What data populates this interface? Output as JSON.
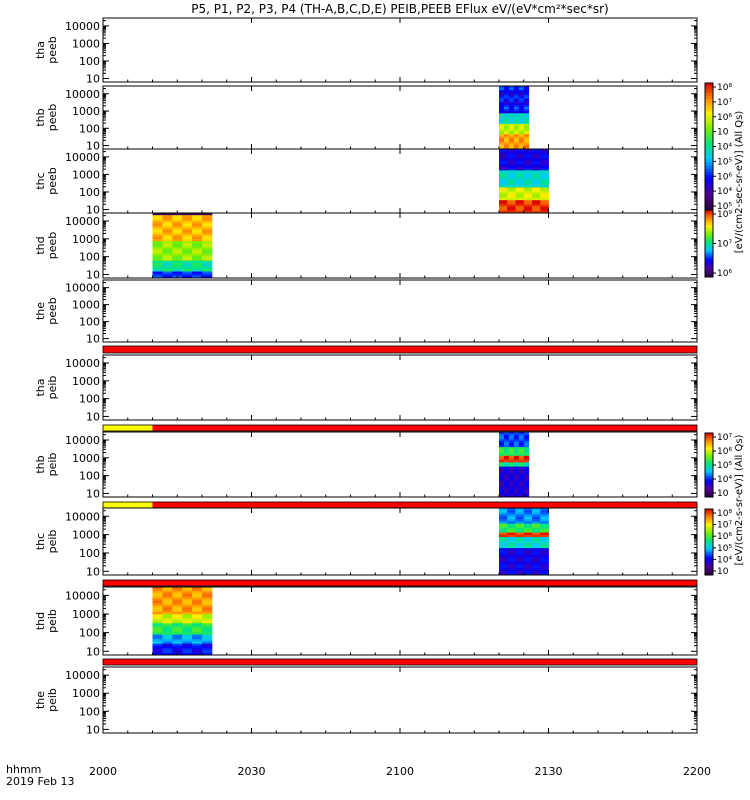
{
  "title": "P5, P1, P2, P3, P4 (TH-A,B,C,D,E) PEIB,PEEB EFlux eV/(eV*cm²*sec*sr)",
  "xaxis": {
    "date_label": "2019 Feb 13",
    "format_label": "hhmm",
    "tick_labels": [
      "2000",
      "2030",
      "2100",
      "2130",
      "2200"
    ]
  },
  "colors": {
    "bar_red": "#ff0000",
    "bar_yellow": "#ffff00",
    "axis": "#000000"
  },
  "chart_data": {
    "type": "heatmap",
    "x_range": [
      "20:00",
      "22:00"
    ],
    "y_scale": "log",
    "y_tick_labels": [
      "10",
      "100",
      "1000",
      "10000"
    ],
    "panels": [
      {
        "probe": "tha",
        "product": "peeb",
        "label": [
          "tha",
          "peeb"
        ],
        "data": []
      },
      {
        "probe": "thb",
        "product": "peeb",
        "label": [
          "thb",
          "peeb"
        ],
        "data": [
          {
            "start": "21:20",
            "end": "21:26",
            "profile": "peeb_b"
          }
        ]
      },
      {
        "probe": "thc",
        "product": "peeb",
        "label": [
          "thc",
          "peeb"
        ],
        "data": [
          {
            "start": "21:20",
            "end": "21:30",
            "profile": "peeb_c"
          }
        ]
      },
      {
        "probe": "thd",
        "product": "peeb",
        "label": [
          "thd",
          "peeb"
        ],
        "data": [
          {
            "start": "20:10",
            "end": "20:22",
            "profile": "peeb_d"
          }
        ]
      },
      {
        "probe": "the",
        "product": "peeb",
        "label": [
          "the",
          "peeb"
        ],
        "data": [],
        "bar_below": [
          {
            "start": "20:00",
            "end": "22:00",
            "color": "red"
          }
        ]
      },
      {
        "probe": "tha",
        "product": "peib",
        "label": [
          "tha",
          "peib"
        ],
        "data": [],
        "bar_below": [
          {
            "start": "20:00",
            "end": "20:10",
            "color": "yellow"
          },
          {
            "start": "20:10",
            "end": "22:00",
            "color": "red"
          }
        ]
      },
      {
        "probe": "thb",
        "product": "peib",
        "label": [
          "thb",
          "peib"
        ],
        "data": [
          {
            "start": "21:20",
            "end": "21:26",
            "profile": "peib_b"
          }
        ],
        "bar_below": [
          {
            "start": "20:00",
            "end": "20:10",
            "color": "yellow"
          },
          {
            "start": "20:10",
            "end": "22:00",
            "color": "red"
          }
        ]
      },
      {
        "probe": "thc",
        "product": "peib",
        "label": [
          "thc",
          "peib"
        ],
        "data": [
          {
            "start": "21:20",
            "end": "21:30",
            "profile": "peib_c"
          }
        ],
        "bar_below": [
          {
            "start": "20:00",
            "end": "22:00",
            "color": "red"
          }
        ]
      },
      {
        "probe": "thd",
        "product": "peib",
        "label": [
          "thd",
          "peib"
        ],
        "data": [
          {
            "start": "20:10",
            "end": "20:22",
            "profile": "peib_d"
          }
        ],
        "bar_below": [
          {
            "start": "20:00",
            "end": "22:00",
            "color": "red"
          }
        ]
      },
      {
        "probe": "the",
        "product": "peib",
        "label": [
          "the",
          "peib"
        ],
        "data": []
      }
    ],
    "colorbars": [
      {
        "id": "peeb_upper",
        "ticks": [
          "10⁵",
          "10⁴",
          "10⁶",
          "10⁵",
          "10⁴",
          "10⁳",
          "10⁶",
          "10⁷",
          "10⁸"
        ]
      },
      {
        "id": "peeb_lower",
        "ticks": [
          "10⁶",
          "10⁷",
          "10⁹"
        ]
      },
      {
        "id": "peib_upper",
        "ticks": [
          "10⁳",
          "10⁴",
          "10⁵",
          "10⁶",
          "10⁷"
        ]
      },
      {
        "id": "peib_lower",
        "ticks": [
          "10⁳",
          "10⁴",
          "10⁵",
          "10⁶",
          "10⁷",
          "10⁸"
        ]
      }
    ],
    "colorbar_labels": [
      "[eV/(cm2-sec-sr-eV)] (All Qs)",
      "[eV/(cm2-s-sr-eV)] (All Qs)"
    ]
  }
}
